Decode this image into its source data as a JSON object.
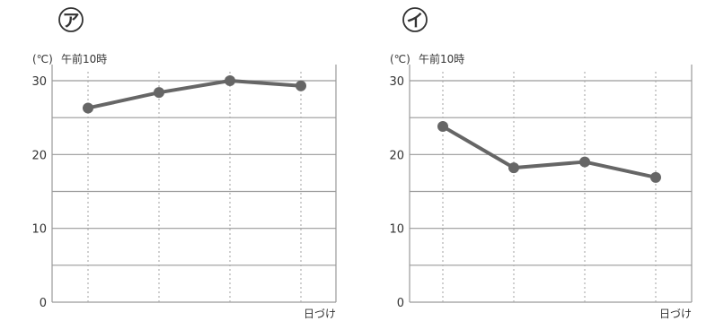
{
  "chart_data": [
    {
      "type": "line",
      "panel_label": "ア",
      "unit": "(℃)",
      "series_label": "午前10時",
      "xlabel": "日づけ",
      "ylim": [
        0,
        30
      ],
      "y_ticks": [
        "0",
        "10",
        "20",
        "30"
      ],
      "grid": true,
      "x": [
        1,
        2,
        3,
        4
      ],
      "values": [
        26.3,
        28.4,
        30.0,
        29.3
      ]
    },
    {
      "type": "line",
      "panel_label": "イ",
      "unit": "(℃)",
      "series_label": "午前10時",
      "xlabel": "日づけ",
      "ylim": [
        0,
        30
      ],
      "y_ticks": [
        "0",
        "10",
        "20",
        "30"
      ],
      "grid": true,
      "x": [
        1,
        2,
        3,
        4
      ],
      "values": [
        23.8,
        18.2,
        19.0,
        16.9
      ]
    }
  ],
  "colors": {
    "line": "#666666",
    "point": "#666666",
    "grid": "#9a9a9a",
    "dotted": "#b0b0b0",
    "text": "#333333"
  }
}
